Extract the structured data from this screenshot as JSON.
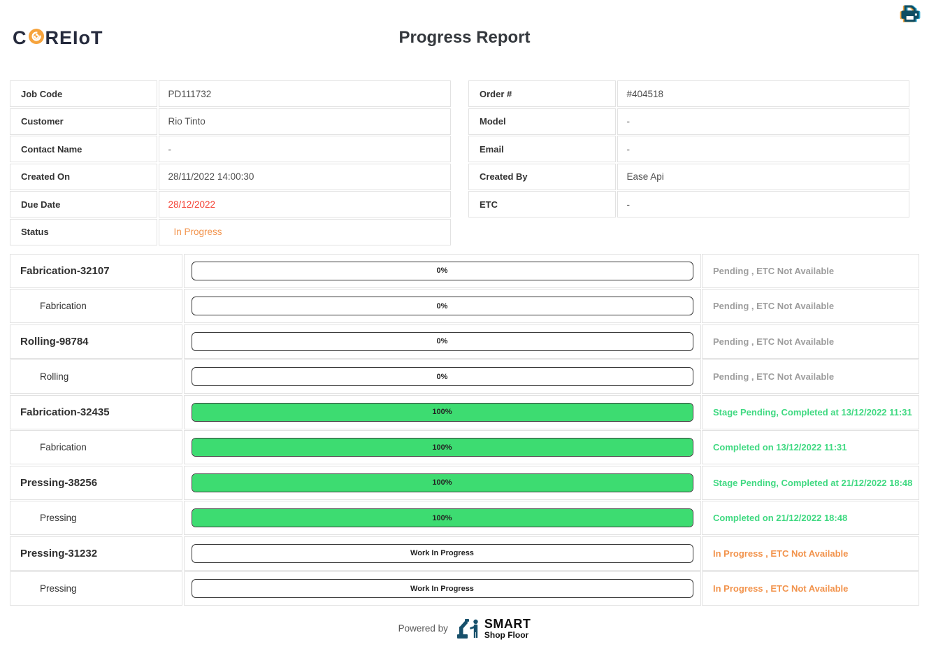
{
  "header": {
    "logo_prefix": "C",
    "logo_suffix": "REIoT",
    "title": "Progress Report"
  },
  "info_left": [
    {
      "label": "Job Code",
      "value": "PD111732",
      "color": "default"
    },
    {
      "label": "Customer",
      "value": "Rio Tinto",
      "color": "default"
    },
    {
      "label": "Contact Name",
      "value": "-",
      "color": "default"
    },
    {
      "label": "Created On",
      "value": "28/11/2022 14:00:30",
      "color": "default"
    },
    {
      "label": "Due Date",
      "value": "28/12/2022",
      "color": "red"
    },
    {
      "label": "Status",
      "value": "In Progress",
      "color": "orange"
    }
  ],
  "info_right": [
    {
      "label": "Order #",
      "value": "#404518",
      "color": "default"
    },
    {
      "label": "Model",
      "value": "-",
      "color": "default"
    },
    {
      "label": "Email",
      "value": "-",
      "color": "default"
    },
    {
      "label": "Created By",
      "value": "Ease Api",
      "color": "default"
    },
    {
      "label": "ETC",
      "value": "-",
      "color": "default"
    }
  ],
  "progress_rows": [
    {
      "name": "Fabrication-32107",
      "level": "parent",
      "bar_label": "0%",
      "fill": 0,
      "status": "Pending , ETC Not Available",
      "status_color": "gray"
    },
    {
      "name": "Fabrication",
      "level": "child",
      "bar_label": "0%",
      "fill": 0,
      "status": "Pending , ETC Not Available",
      "status_color": "gray"
    },
    {
      "name": "Rolling-98784",
      "level": "parent",
      "bar_label": "0%",
      "fill": 0,
      "status": "Pending , ETC Not Available",
      "status_color": "gray"
    },
    {
      "name": "Rolling",
      "level": "child",
      "bar_label": "0%",
      "fill": 0,
      "status": "Pending , ETC Not Available",
      "status_color": "gray"
    },
    {
      "name": "Fabrication-32435",
      "level": "parent",
      "bar_label": "100%",
      "fill": 100,
      "status": "Stage Pending, Completed at 13/12/2022 11:31",
      "status_color": "green"
    },
    {
      "name": "Fabrication",
      "level": "child",
      "bar_label": "100%",
      "fill": 100,
      "status": "Completed on 13/12/2022 11:31",
      "status_color": "green"
    },
    {
      "name": "Pressing-38256",
      "level": "parent",
      "bar_label": "100%",
      "fill": 100,
      "status": "Stage Pending, Completed at 21/12/2022 18:48",
      "status_color": "green"
    },
    {
      "name": "Pressing",
      "level": "child",
      "bar_label": "100%",
      "fill": 100,
      "status": "Completed on 21/12/2022 18:48",
      "status_color": "green"
    },
    {
      "name": "Pressing-31232",
      "level": "parent",
      "bar_label": "Work In Progress",
      "fill": 0,
      "status": "In Progress , ETC Not Available",
      "status_color": "orange"
    },
    {
      "name": "Pressing",
      "level": "child",
      "bar_label": "Work In Progress",
      "fill": 0,
      "status": "In Progress , ETC Not Available",
      "status_color": "orange"
    }
  ],
  "footer": {
    "powered_by": "Powered by",
    "brand_top": "SMART",
    "brand_bottom": "Shop Floor"
  },
  "colors": {
    "bar_green": "#3ddc71",
    "status_green": "#3fd981",
    "status_gray": "#9e9e9e",
    "status_orange": "#f2934c",
    "alert_red": "#f44336",
    "brand_navy": "#262b3d",
    "logo_orange": "#f6a33c",
    "icon_teal": "#0d4c63"
  }
}
